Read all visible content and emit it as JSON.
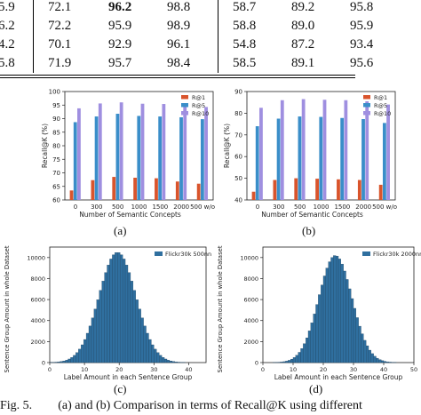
{
  "table": {
    "rows": [
      [
        "5.9",
        "72.1",
        "96.2",
        "98.8",
        "58.7",
        "89.2",
        "95.8"
      ],
      [
        "6.2",
        "72.2",
        "95.9",
        "98.9",
        "58.8",
        "89.0",
        "95.9"
      ],
      [
        "4.2",
        "70.1",
        "92.9",
        "96.1",
        "54.8",
        "87.2",
        "93.4"
      ],
      [
        "5.8",
        "71.9",
        "95.7",
        "98.4",
        "58.5",
        "89.1",
        "95.6"
      ]
    ],
    "bold_cell": [
      0,
      2
    ]
  },
  "colors": {
    "r1": "#d9542c",
    "r5": "#3a8ec9",
    "r10": "#9f8fe0",
    "hist": "#2f6f9f"
  },
  "panel_a": {
    "label": "(a)",
    "chart_data": {
      "type": "bar",
      "ylabel": "Recall@K (%)",
      "xlabel": "Number of Semantic Concepts",
      "categories": [
        "0",
        "300",
        "500",
        "1000",
        "1500",
        "2000",
        "500 w/o"
      ],
      "ylim": [
        60,
        100
      ],
      "yticks": [
        "60",
        "65",
        "70",
        "75",
        "80",
        "85",
        "90",
        "95",
        "100"
      ],
      "legend": [
        "R@1",
        "R@5",
        "R@10"
      ],
      "series": [
        {
          "name": "R@1",
          "values": [
            63.5,
            67.3,
            68.5,
            68.2,
            68.0,
            66.8,
            66.0
          ]
        },
        {
          "name": "R@5",
          "values": [
            88.7,
            90.8,
            91.8,
            91.0,
            90.8,
            90.5,
            89.8
          ]
        },
        {
          "name": "R@10",
          "values": [
            93.8,
            95.6,
            96.0,
            95.5,
            95.4,
            95.2,
            94.3
          ]
        }
      ]
    }
  },
  "panel_b": {
    "label": "(b)",
    "chart_data": {
      "type": "bar",
      "ylabel": "Recall@K (%)",
      "xlabel": "Number of Semantic Concepts",
      "categories": [
        "0",
        "300",
        "500",
        "1000",
        "1500",
        "2000",
        "500 w/o"
      ],
      "ylim": [
        40,
        90
      ],
      "yticks": [
        "40",
        "50",
        "60",
        "70",
        "80",
        "90"
      ],
      "legend": [
        "R@1",
        "R@5",
        "R@10"
      ],
      "series": [
        {
          "name": "R@1",
          "values": [
            43.8,
            49.2,
            50.0,
            49.8,
            49.5,
            49.2,
            47.0
          ]
        },
        {
          "name": "R@5",
          "values": [
            74.0,
            77.5,
            78.5,
            78.3,
            77.8,
            77.3,
            75.5
          ]
        },
        {
          "name": "R@10",
          "values": [
            82.5,
            86.0,
            86.5,
            86.2,
            86.0,
            85.5,
            84.0
          ]
        }
      ]
    }
  },
  "panel_c": {
    "label": "(c)",
    "chart_data": {
      "type": "bar",
      "ylabel": "Sentence Group Amount in whole Dataset",
      "xlabel": "Label Amount in each Sentence Group",
      "legend": [
        "Flickr30k 500nn"
      ],
      "xlim": [
        0,
        45
      ],
      "xticks": [
        "0",
        "10",
        "20",
        "30",
        "40"
      ],
      "ylim": [
        0,
        10000
      ],
      "yticks": [
        "0",
        "2000",
        "4000",
        "6000",
        "8000",
        "10000"
      ],
      "center": 19.5,
      "sd": 5.3,
      "peak": 10500
    }
  },
  "panel_d": {
    "label": "(d)",
    "chart_data": {
      "type": "bar",
      "ylabel": "Sentence Group Amount in whole Dataset",
      "xlabel": "Label Amount in each Sentence Group",
      "legend": [
        "Flickr30k 2000nn"
      ],
      "xlim": [
        0,
        50
      ],
      "xticks": [
        "0",
        "10",
        "20",
        "30",
        "40",
        "50"
      ],
      "ylim": [
        0,
        10000
      ],
      "yticks": [
        "0",
        "2000",
        "4000",
        "6000",
        "8000",
        "10000"
      ],
      "center": 24,
      "sd": 5.5,
      "peak": 10200
    }
  },
  "caption": {
    "prefix": "Fig. 5.",
    "text": "(a) and (b) Comparison in terms of Recall@K using different"
  }
}
